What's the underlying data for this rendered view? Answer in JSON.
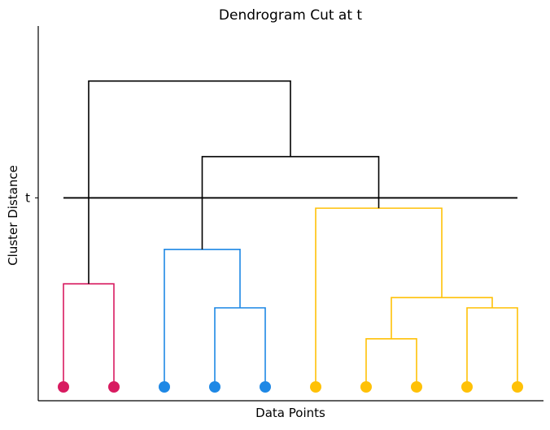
{
  "chart_data": {
    "type": "dendrogram",
    "title": "Dendrogram Cut at t",
    "xlabel": "Data Points",
    "ylabel": "Cluster Distance",
    "ylim": [
      0,
      10.5
    ],
    "cut": {
      "label": "t",
      "height": 5.5
    },
    "leaves": [
      {
        "cluster": "crimson"
      },
      {
        "cluster": "crimson"
      },
      {
        "cluster": "blue"
      },
      {
        "cluster": "blue"
      },
      {
        "cluster": "blue"
      },
      {
        "cluster": "gold"
      },
      {
        "cluster": "gold"
      },
      {
        "cluster": "gold"
      },
      {
        "cluster": "gold"
      },
      {
        "cluster": "gold"
      }
    ],
    "merges": [
      {
        "left": 0,
        "right": 1,
        "height": 3.0,
        "color": "#d81b60"
      },
      {
        "left": 3,
        "right": 4,
        "height": 2.3,
        "color": "#1e88e5"
      },
      {
        "left": 2,
        "right": "m1",
        "height": 4.0,
        "color": "#1e88e5"
      },
      {
        "left": 6,
        "right": 7,
        "height": 1.4,
        "color": "#ffc107"
      },
      {
        "left": 8,
        "right": 9,
        "height": 2.3,
        "color": "#ffc107"
      },
      {
        "left": "m3",
        "right": "m4",
        "height": 2.6,
        "color": "#ffc107"
      },
      {
        "left": 5,
        "right": "m5",
        "height": 5.2,
        "color": "#ffc107"
      },
      {
        "left": "m2",
        "right": "m6",
        "height": 6.7,
        "color": "#000000"
      },
      {
        "left": "m0",
        "right": "m7",
        "height": 8.9,
        "color": "#000000"
      }
    ],
    "colors": {
      "crimson": "#d81b60",
      "blue": "#1e88e5",
      "gold": "#ffc107",
      "above_cut": "#000000",
      "cut_line": "#000000"
    },
    "ticks": {
      "x": [],
      "y": [
        "t"
      ]
    },
    "grid": false
  }
}
